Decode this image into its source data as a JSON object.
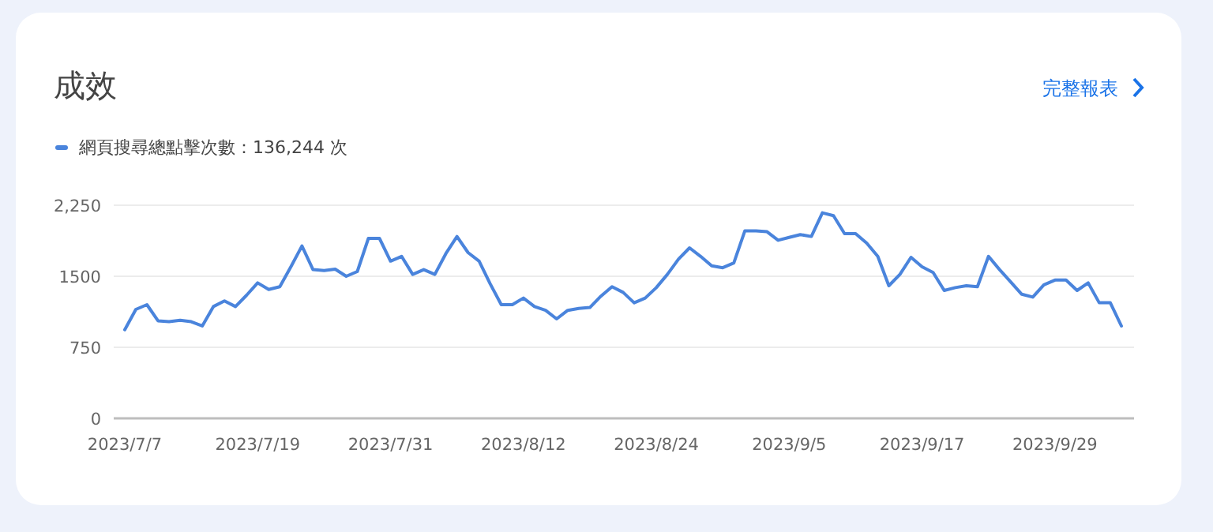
{
  "chart_data": {
    "type": "line",
    "title": "成效",
    "annotations": [
      "完整報表"
    ],
    "categories": [
      "2023/7/7",
      null,
      null,
      null,
      null,
      null,
      null,
      null,
      null,
      null,
      null,
      null,
      "2023/7/19",
      null,
      null,
      null,
      null,
      null,
      null,
      null,
      null,
      null,
      null,
      null,
      "2023/7/31",
      null,
      null,
      null,
      null,
      null,
      null,
      null,
      null,
      null,
      null,
      null,
      "2023/8/12",
      null,
      null,
      null,
      null,
      null,
      null,
      null,
      null,
      null,
      null,
      null,
      "2023/8/24",
      null,
      null,
      null,
      null,
      null,
      null,
      null,
      null,
      null,
      null,
      null,
      "2023/9/5",
      null,
      null,
      null,
      null,
      null,
      null,
      null,
      null,
      null,
      null,
      null,
      "2023/9/17",
      null,
      null,
      null,
      null,
      null,
      null,
      null,
      null,
      null,
      null,
      null,
      "2023/9/29",
      null,
      null,
      null,
      null,
      null,
      null
    ],
    "series": [
      {
        "name": "網頁搜尋總點擊次數：136,244 次",
        "color": "#4a84dc",
        "values": [
          935,
          1150,
          1200,
          1030,
          1020,
          1035,
          1020,
          975,
          1180,
          1240,
          1180,
          1300,
          1430,
          1360,
          1390,
          1600,
          1820,
          1570,
          1560,
          1575,
          1500,
          1550,
          1900,
          1900,
          1660,
          1710,
          1520,
          1570,
          1520,
          1740,
          1920,
          1750,
          1660,
          1420,
          1200,
          1200,
          1270,
          1180,
          1140,
          1050,
          1140,
          1160,
          1170,
          1290,
          1390,
          1330,
          1220,
          1270,
          1380,
          1520,
          1680,
          1800,
          1710,
          1610,
          1590,
          1640,
          1980,
          1980,
          1970,
          1880,
          1910,
          1940,
          1920,
          2170,
          2140,
          1950,
          1950,
          1850,
          1710,
          1400,
          1520,
          1700,
          1600,
          1540,
          1350,
          1380,
          1400,
          1390,
          1710,
          1570,
          1440,
          1310,
          1280,
          1410,
          1460,
          1460,
          1350,
          1430,
          1220,
          1220,
          975
        ]
      }
    ],
    "ylim": [
      0,
      2250
    ],
    "yticks": [
      0,
      750,
      1500,
      {
        "value": 2250,
        "label": "2,250"
      }
    ],
    "grid": "y",
    "legend": "top left",
    "marker": "none",
    "line_style": "solid"
  }
}
